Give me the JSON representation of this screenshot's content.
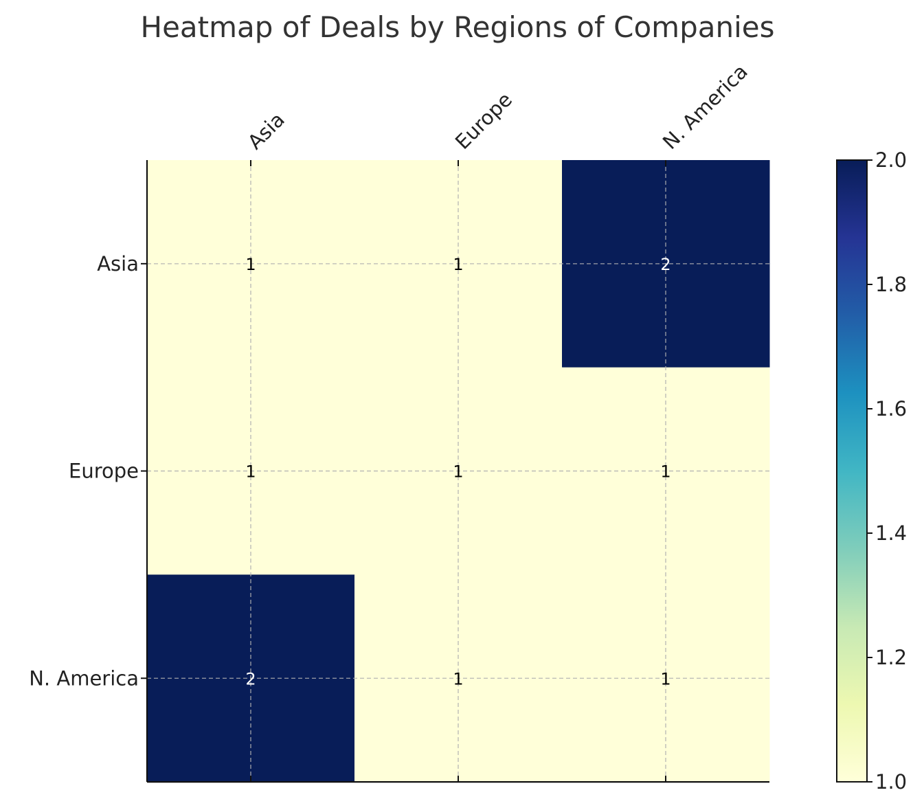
{
  "chart_data": {
    "type": "heatmap",
    "title": "Heatmap of Deals by Regions of Companies",
    "xlabel": "",
    "ylabel": "",
    "x_categories": [
      "Asia",
      "Europe",
      "N. America"
    ],
    "y_categories": [
      "Asia",
      "Europe",
      "N. America"
    ],
    "values": [
      [
        1,
        1,
        2
      ],
      [
        1,
        1,
        1
      ],
      [
        2,
        1,
        1
      ]
    ],
    "colorbar": {
      "range": [
        1.0,
        2.0
      ],
      "ticks": [
        "1.0",
        "1.2",
        "1.4",
        "1.6",
        "1.8",
        "2.0"
      ],
      "colormap": "YlGnBu"
    },
    "x_axis_position": "top",
    "grid": true,
    "annotations": true,
    "colors": {
      "low": "#ffffd9",
      "high": "#081d58",
      "text_dark": "#000000",
      "text_light": "#ffffff",
      "grid": "#b0b0b0"
    }
  }
}
